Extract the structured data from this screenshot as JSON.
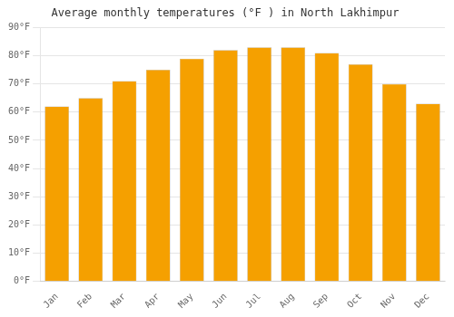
{
  "chart_data": {
    "type": "bar",
    "title": "Average monthly temperatures (°F ) in North Lakhimpur",
    "categories": [
      "Jan",
      "Feb",
      "Mar",
      "Apr",
      "May",
      "Jun",
      "Jul",
      "Aug",
      "Sep",
      "Oct",
      "Nov",
      "Dec"
    ],
    "values": [
      62,
      65,
      71,
      75,
      79,
      82,
      83,
      83,
      81,
      77,
      70,
      63
    ],
    "color": "#F5A000",
    "ylim": [
      0,
      90
    ],
    "yticks": [
      {
        "value": 0,
        "label": "0°F"
      },
      {
        "value": 10,
        "label": "10°F"
      },
      {
        "value": 20,
        "label": "20°F"
      },
      {
        "value": 30,
        "label": "30°F"
      },
      {
        "value": 40,
        "label": "40°F"
      },
      {
        "value": 50,
        "label": "50°F"
      },
      {
        "value": 60,
        "label": "60°F"
      },
      {
        "value": 70,
        "label": "70°F"
      },
      {
        "value": 80,
        "label": "80°F"
      },
      {
        "value": 90,
        "label": "90°F"
      }
    ],
    "grid": true
  }
}
